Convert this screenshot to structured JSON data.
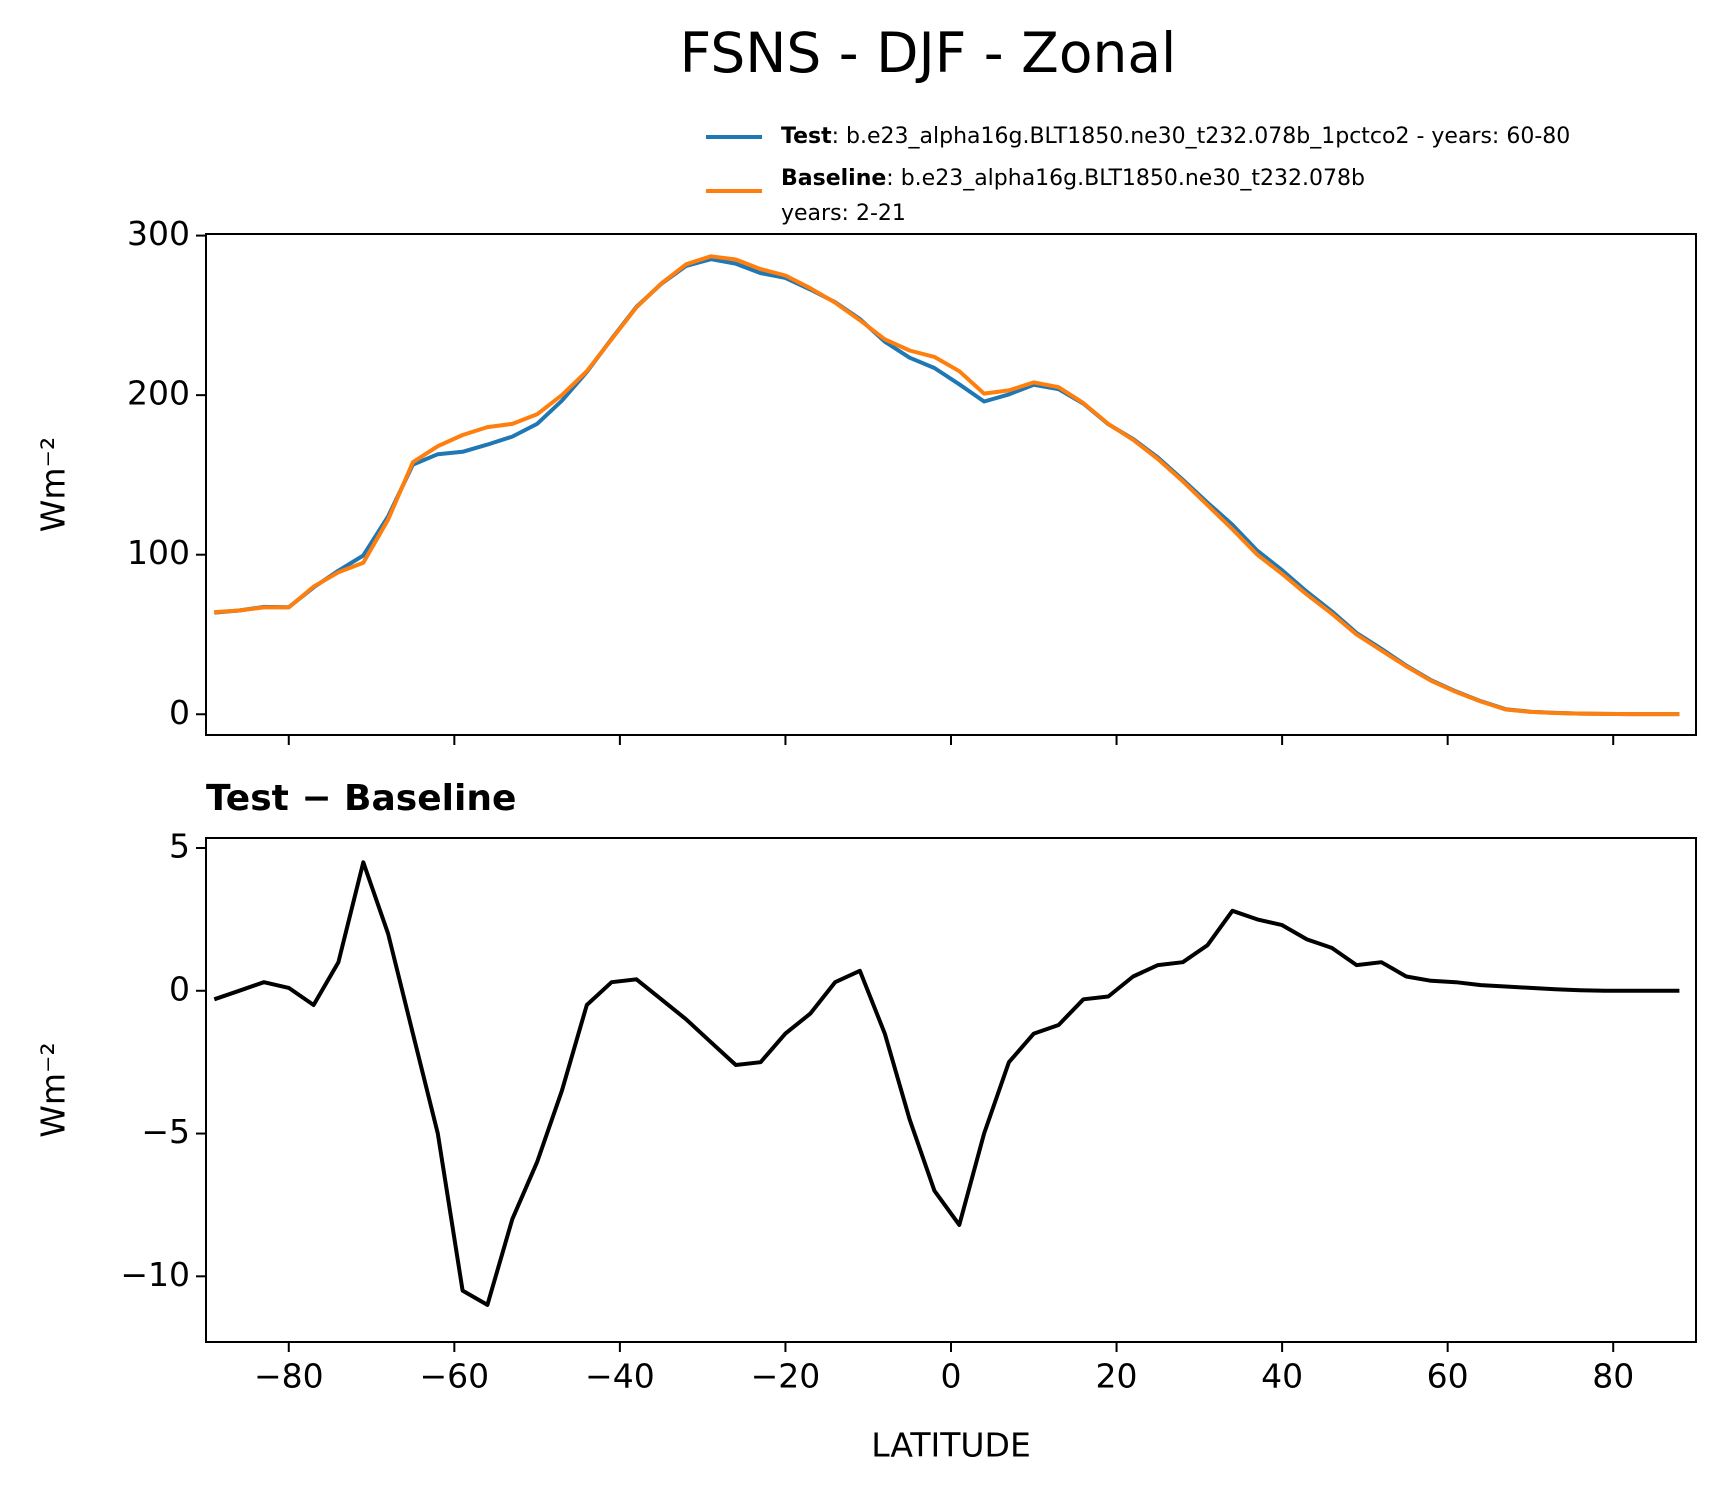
{
  "chart_data": [
    {
      "type": "line",
      "title": "FSNS - DJF - Zonal",
      "ylabel": "Wm⁻²",
      "x": [
        -89,
        -86,
        -83,
        -80,
        -77,
        -74,
        -71,
        -68,
        -65,
        -62,
        -59,
        -56,
        -53,
        -50,
        -47,
        -44,
        -41,
        -38,
        -35,
        -32,
        -29,
        -26,
        -23,
        -20,
        -17,
        -14,
        -11,
        -8,
        -5,
        -2,
        1,
        4,
        7,
        10,
        13,
        16,
        19,
        22,
        25,
        28,
        31,
        34,
        37,
        40,
        43,
        46,
        49,
        52,
        55,
        58,
        61,
        64,
        67,
        70,
        73,
        76,
        79,
        82,
        85,
        88
      ],
      "series": [
        {
          "name": "Test",
          "label": ": b.e23_alpha16g.BLT1850.ne30_t232.078b_1pctco2 - years: 60-80",
          "color": "#1f77b4",
          "values": [
            63.7,
            65,
            67.3,
            67.1,
            79.5,
            90,
            99.5,
            124,
            156.5,
            163,
            164.5,
            169,
            174,
            182,
            196.5,
            214.5,
            235.3,
            255.4,
            269.7,
            281,
            285.2,
            282.4,
            276.5,
            273.5,
            266.2,
            258.3,
            247.7,
            233.5,
            223.5,
            217,
            206.8,
            196,
            200.5,
            206.5,
            203.8,
            194.7,
            181.8,
            172.5,
            160.9,
            147,
            132.6,
            118.8,
            102.5,
            90.3,
            76.8,
            64.5,
            50.9,
            41,
            30.5,
            21.35,
            14.3,
            8.2,
            3.15,
            1.6,
            0.85,
            0.42,
            0.2,
            0.1,
            0.1,
            0.1
          ]
        },
        {
          "name": "Baseline",
          "label": ": b.e23_alpha16g.BLT1850.ne30_t232.078b",
          "label2": "years: 2-21",
          "color": "#ff7f0e",
          "values": [
            64,
            65,
            67,
            67,
            80,
            89,
            95,
            122,
            158,
            168,
            175,
            180,
            182,
            188,
            200,
            215,
            235,
            255,
            270,
            282,
            287,
            285,
            279,
            275,
            267,
            258,
            247,
            235,
            228,
            224,
            215,
            201,
            203,
            208,
            205,
            195,
            182,
            172,
            160,
            146,
            131,
            116,
            100,
            88,
            75,
            63,
            50,
            40,
            30,
            21,
            14,
            8,
            3,
            1.5,
            0.8,
            0.4,
            0.2,
            0.1,
            0.1,
            0.1
          ]
        }
      ],
      "xlim": [
        -90,
        90
      ],
      "xticks": [
        -80,
        -60,
        -40,
        -20,
        0,
        20,
        40,
        60,
        80
      ],
      "xtick_labels": false,
      "ylim": [
        -13,
        301
      ],
      "yticks": [
        0,
        100,
        200,
        300
      ]
    },
    {
      "type": "line",
      "title": "Test − Baseline",
      "xlabel": "LATITUDE",
      "ylabel": "Wm⁻²",
      "x": [
        -89,
        -86,
        -83,
        -80,
        -77,
        -74,
        -71,
        -68,
        -65,
        -62,
        -59,
        -56,
        -53,
        -50,
        -47,
        -44,
        -41,
        -38,
        -35,
        -32,
        -29,
        -26,
        -23,
        -20,
        -17,
        -14,
        -11,
        -8,
        -5,
        -2,
        1,
        4,
        7,
        10,
        13,
        16,
        19,
        22,
        25,
        28,
        31,
        34,
        37,
        40,
        43,
        46,
        49,
        52,
        55,
        58,
        61,
        64,
        67,
        70,
        73,
        76,
        79,
        82,
        85,
        88
      ],
      "series": [
        {
          "color": "#000000",
          "values": [
            -0.3,
            0,
            0.3,
            0.1,
            -0.5,
            1,
            4.5,
            2,
            -1.5,
            -5,
            -10.5,
            -11,
            -8,
            -6,
            -3.5,
            -0.5,
            0.3,
            0.4,
            -0.3,
            -1,
            -1.8,
            -2.6,
            -2.5,
            -1.5,
            -0.8,
            0.3,
            0.7,
            -1.5,
            -4.5,
            -7,
            -8.2,
            -5,
            -2.5,
            -1.5,
            -1.2,
            -0.3,
            -0.2,
            0.5,
            0.9,
            1,
            1.6,
            2.8,
            2.5,
            2.3,
            1.8,
            1.5,
            0.9,
            1,
            0.5,
            0.35,
            0.3,
            0.2,
            0.15,
            0.1,
            0.05,
            0.02,
            0,
            0,
            0,
            0
          ]
        }
      ],
      "xlim": [
        -90,
        90
      ],
      "xticks": [
        {
          "value": -80,
          "label": "−80"
        },
        {
          "value": -60,
          "label": "−60"
        },
        {
          "value": -40,
          "label": "−40"
        },
        {
          "value": -20,
          "label": "−20"
        },
        0,
        20,
        40,
        60,
        80
      ],
      "xtick_labels": true,
      "ylim": [
        -12.3,
        5.35
      ],
      "yticks": [
        {
          "value": -10,
          "label": "−10"
        },
        {
          "value": -5,
          "label": "−5"
        },
        0,
        5
      ]
    }
  ]
}
